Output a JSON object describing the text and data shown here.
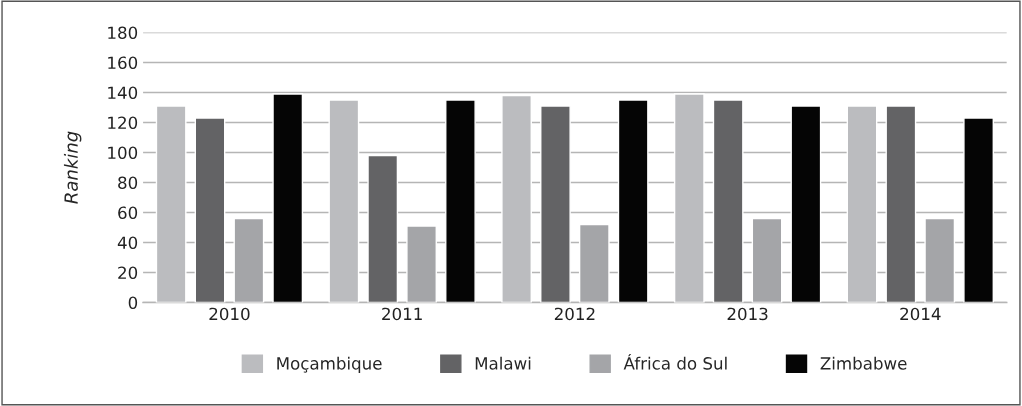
{
  "chart_data": {
    "type": "bar",
    "ylabel": "Ranking",
    "categories": [
      "2010",
      "2011",
      "2012",
      "2013",
      "2014"
    ],
    "series": [
      {
        "name": "Moçambique",
        "color": "#bbbcbf",
        "values": [
          131,
          135,
          138,
          139,
          131
        ]
      },
      {
        "name": "Malawi",
        "color": "#636365",
        "values": [
          123,
          98,
          131,
          135,
          131
        ]
      },
      {
        "name": "África do Sul",
        "color": "#a4a5a8",
        "values": [
          56,
          51,
          52,
          56,
          56
        ]
      },
      {
        "name": "Zimbabwe",
        "color": "#050505",
        "values": [
          139,
          135,
          135,
          131,
          123
        ]
      }
    ],
    "ylim": [
      0,
      180
    ],
    "yticks": [
      0,
      20,
      40,
      60,
      80,
      100,
      120,
      140,
      160,
      180
    ],
    "grid": "y",
    "legend": "bottom"
  }
}
